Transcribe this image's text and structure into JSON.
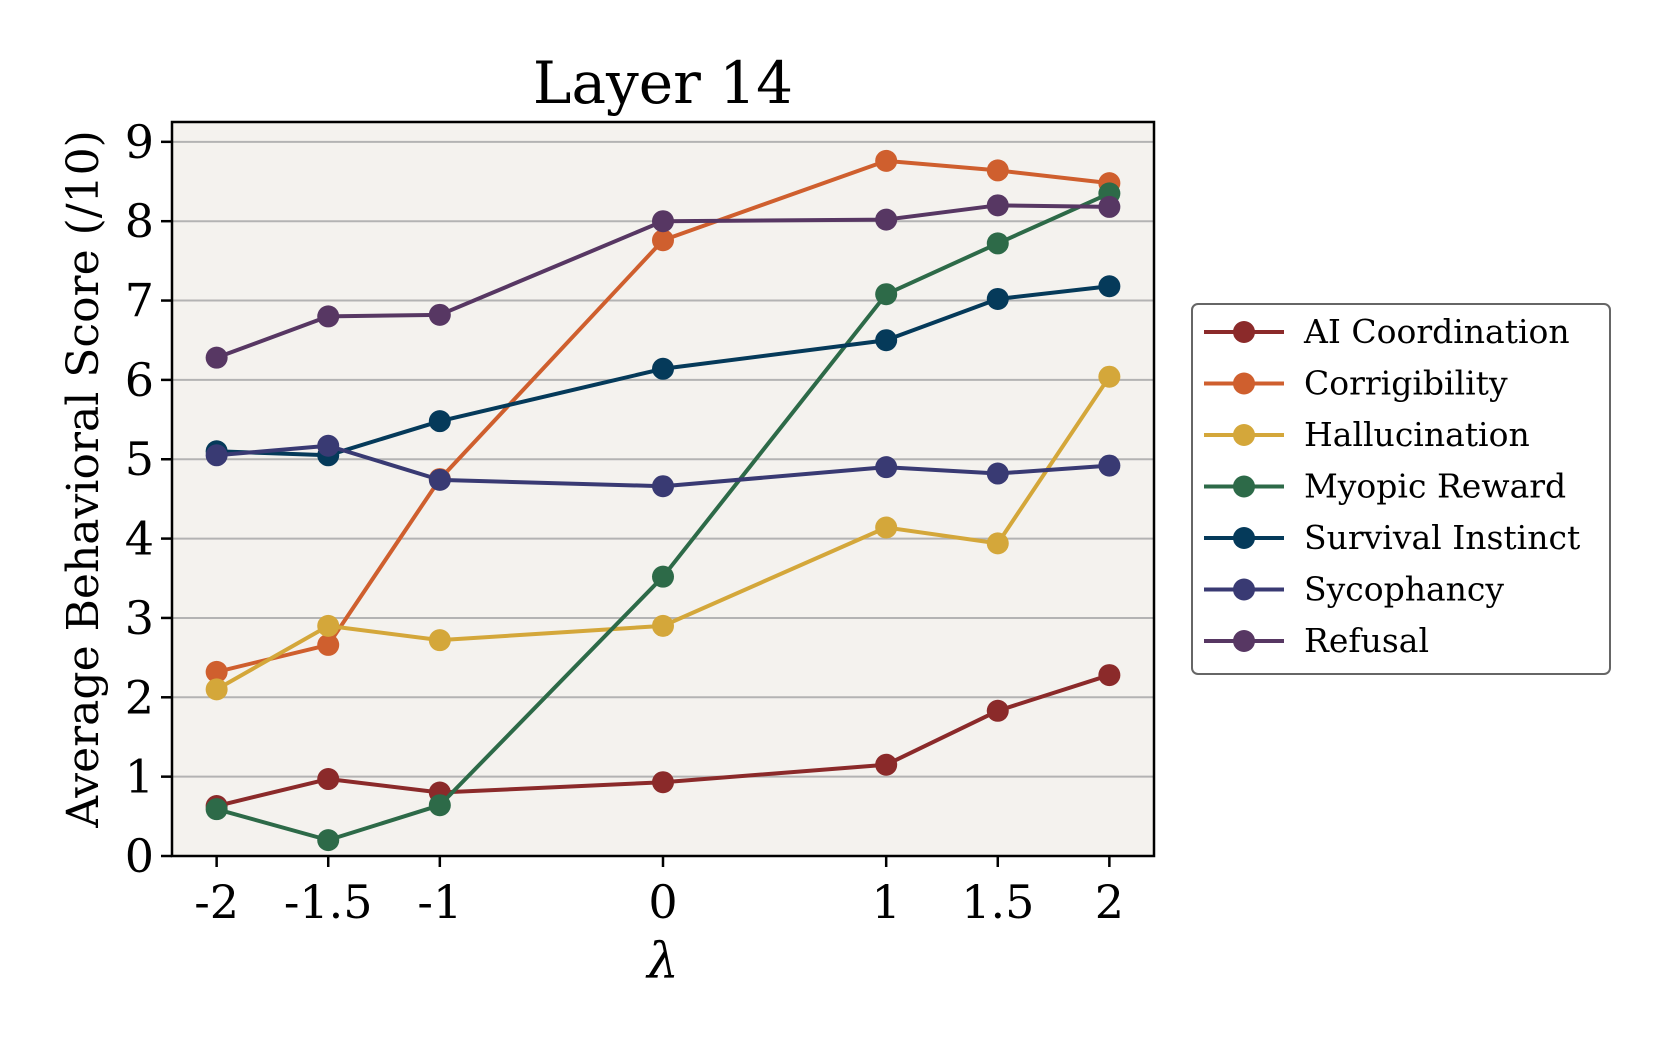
{
  "chart_data": {
    "type": "line",
    "title": "Layer 14",
    "xlabel": "λ",
    "ylabel": "Average Behavioral Score (/10)",
    "x": [
      -2,
      -1.5,
      -1,
      0,
      1,
      1.5,
      2
    ],
    "x_tick_labels": [
      "-2",
      "-1.5",
      "-1",
      "0",
      "1",
      "1.5",
      "2"
    ],
    "y_ticks": [
      0,
      1,
      2,
      3,
      4,
      5,
      6,
      7,
      8,
      9
    ],
    "xlim": [
      -2.2,
      2.2
    ],
    "ylim": [
      0,
      9.25
    ],
    "grid": "horizontal",
    "legend_position": "right",
    "plot_background": "#f4f2ee",
    "series": [
      {
        "name": "AI Coordination",
        "color": "#8b2a2a",
        "values": [
          0.63,
          0.97,
          0.8,
          0.93,
          1.15,
          1.83,
          2.28
        ]
      },
      {
        "name": "Corrigibility",
        "color": "#cf5f2e",
        "values": [
          2.32,
          2.66,
          4.75,
          7.76,
          8.76,
          8.64,
          8.48
        ]
      },
      {
        "name": "Hallucination",
        "color": "#d4a73a",
        "values": [
          2.1,
          2.9,
          2.72,
          2.9,
          4.14,
          3.94,
          6.04
        ]
      },
      {
        "name": "Myopic Reward",
        "color": "#2d6a48",
        "values": [
          0.59,
          0.2,
          0.64,
          3.52,
          7.08,
          7.72,
          8.35
        ]
      },
      {
        "name": "Survival Instinct",
        "color": "#053a5a",
        "values": [
          5.1,
          5.05,
          5.48,
          6.14,
          6.5,
          7.02,
          7.18
        ]
      },
      {
        "name": "Sycophancy",
        "color": "#393a73",
        "values": [
          5.05,
          5.17,
          4.74,
          4.66,
          4.9,
          4.82,
          4.92
        ]
      },
      {
        "name": "Refusal",
        "color": "#573763",
        "values": [
          6.28,
          6.8,
          6.82,
          8.0,
          8.02,
          8.2,
          8.18
        ]
      }
    ]
  }
}
